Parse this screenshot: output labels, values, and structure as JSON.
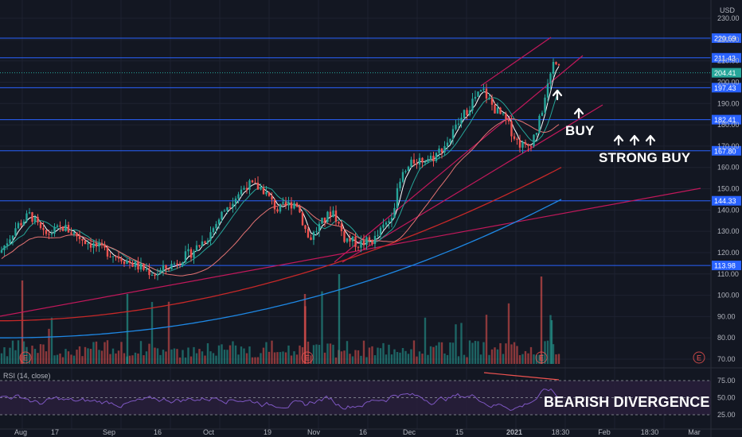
{
  "currency_label": "USD",
  "rsi_label": "RSI (14, close)",
  "annotations": {
    "buy": "BUY",
    "strong_buy": "STRONG BUY",
    "bearish_divergence": "BEARISH DIVERGENCE"
  },
  "price_axis": {
    "ticks": [
      230,
      220,
      210,
      200,
      190,
      180,
      170,
      160,
      150,
      140,
      130,
      120,
      110,
      100,
      90,
      80,
      70
    ],
    "tick_labels": [
      "230.00",
      "220.00",
      "210.00",
      "200.00",
      "190.00",
      "180.00",
      "170.00",
      "160.00",
      "150.00",
      "140.00",
      "130.00",
      "120.00",
      "110.00",
      "100.00",
      "90.00",
      "80.00",
      "70.00"
    ]
  },
  "price_levels": [
    {
      "label": "220.69",
      "value": 220.69
    },
    {
      "label": "211.43",
      "value": 211.43
    },
    {
      "label": "204.41",
      "value": 204.41,
      "current": true
    },
    {
      "label": "197.43",
      "value": 197.43
    },
    {
      "label": "182.41",
      "value": 182.41
    },
    {
      "label": "167.80",
      "value": 167.8
    },
    {
      "label": "144.33",
      "value": 144.33
    },
    {
      "label": "113.98",
      "value": 113.98
    }
  ],
  "rsi_axis": {
    "ticks": [
      75,
      50,
      25
    ],
    "tick_labels": [
      "75.00",
      "50.00",
      "25.00"
    ]
  },
  "time_axis": [
    "Aug",
    "17",
    "Sep",
    "16",
    "Oct",
    "19",
    "Nov",
    "16",
    "Dec",
    "15",
    "2021",
    "18:30",
    "Feb",
    "18:30",
    "Mar"
  ],
  "earnings_marker": "E",
  "colors": {
    "background": "#131722",
    "up": "#26a69a",
    "down": "#ef5350",
    "level_line": "#2962ff",
    "trend_red": "#c2185b",
    "rsi_line": "#7e57c2",
    "rsi_band": "#2a1f3d",
    "ma_white": "#ffffff",
    "ma_teal": "#26a69a",
    "ma_orange": "#e57373",
    "ma_red": "#c62828",
    "ma_blue": "#1e88e5"
  }
}
